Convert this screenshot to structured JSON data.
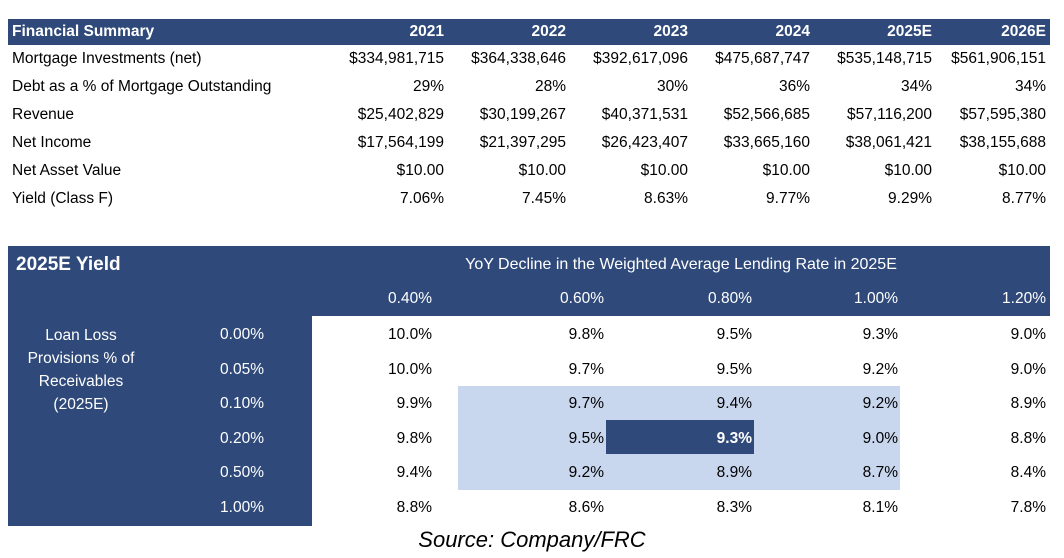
{
  "financial_summary": {
    "title": "Financial Summary",
    "years": [
      "2021",
      "2022",
      "2023",
      "2024",
      "2025E",
      "2026E"
    ],
    "rows": [
      {
        "label": "Mortgage Investments (net)",
        "values": [
          "$334,981,715",
          "$364,338,646",
          "$392,617,096",
          "$475,687,747",
          "$535,148,715",
          "$561,906,151"
        ]
      },
      {
        "label": "Debt as a % of Mortgage Outstanding",
        "values": [
          "29%",
          "28%",
          "30%",
          "36%",
          "34%",
          "34%"
        ]
      },
      {
        "label": "Revenue",
        "values": [
          "$25,402,829",
          "$30,199,267",
          "$40,371,531",
          "$52,566,685",
          "$57,116,200",
          "$57,595,380"
        ]
      },
      {
        "label": "Net Income",
        "values": [
          "$17,564,199",
          "$21,397,295",
          "$26,423,407",
          "$33,665,160",
          "$38,061,421",
          "$38,155,688"
        ]
      },
      {
        "label": "Net Asset Value",
        "values": [
          "$10.00",
          "$10.00",
          "$10.00",
          "$10.00",
          "$10.00",
          "$10.00"
        ]
      },
      {
        "label": "Yield (Class F)",
        "values": [
          "7.06%",
          "7.45%",
          "8.63%",
          "9.77%",
          "9.29%",
          "8.77%"
        ]
      }
    ]
  },
  "yield_table": {
    "title": "2025E Yield",
    "column_title": "YoY Decline in the Weighted Average Lending Rate in 2025E",
    "columns": [
      "0.40%",
      "0.60%",
      "0.80%",
      "1.00%",
      "1.20%"
    ],
    "row_title": "Loan Loss Provisions % of Receivables (2025E)",
    "row_title_lines": [
      "Loan Loss",
      "Provisions % of",
      "Receivables",
      "(2025E)"
    ],
    "rows": [
      {
        "label": "0.00%",
        "values": [
          "10.0%",
          "9.8%",
          "9.5%",
          "9.3%",
          "9.0%"
        ]
      },
      {
        "label": "0.05%",
        "values": [
          "10.0%",
          "9.7%",
          "9.5%",
          "9.2%",
          "9.0%"
        ]
      },
      {
        "label": "0.10%",
        "values": [
          "9.9%",
          "9.7%",
          "9.4%",
          "9.2%",
          "8.9%"
        ]
      },
      {
        "label": "0.20%",
        "values": [
          "9.8%",
          "9.5%",
          "9.3%",
          "9.0%",
          "8.8%"
        ]
      },
      {
        "label": "0.50%",
        "values": [
          "9.4%",
          "9.2%",
          "8.9%",
          "8.7%",
          "8.4%"
        ]
      },
      {
        "label": "1.00%",
        "values": [
          "8.8%",
          "8.6%",
          "8.3%",
          "8.1%",
          "7.8%"
        ]
      }
    ],
    "highlight_color": "#c8d6ee",
    "header_color": "#2f4a7a",
    "center_cell": {
      "row": 3,
      "col": 2
    }
  },
  "source": "Source: Company/FRC"
}
